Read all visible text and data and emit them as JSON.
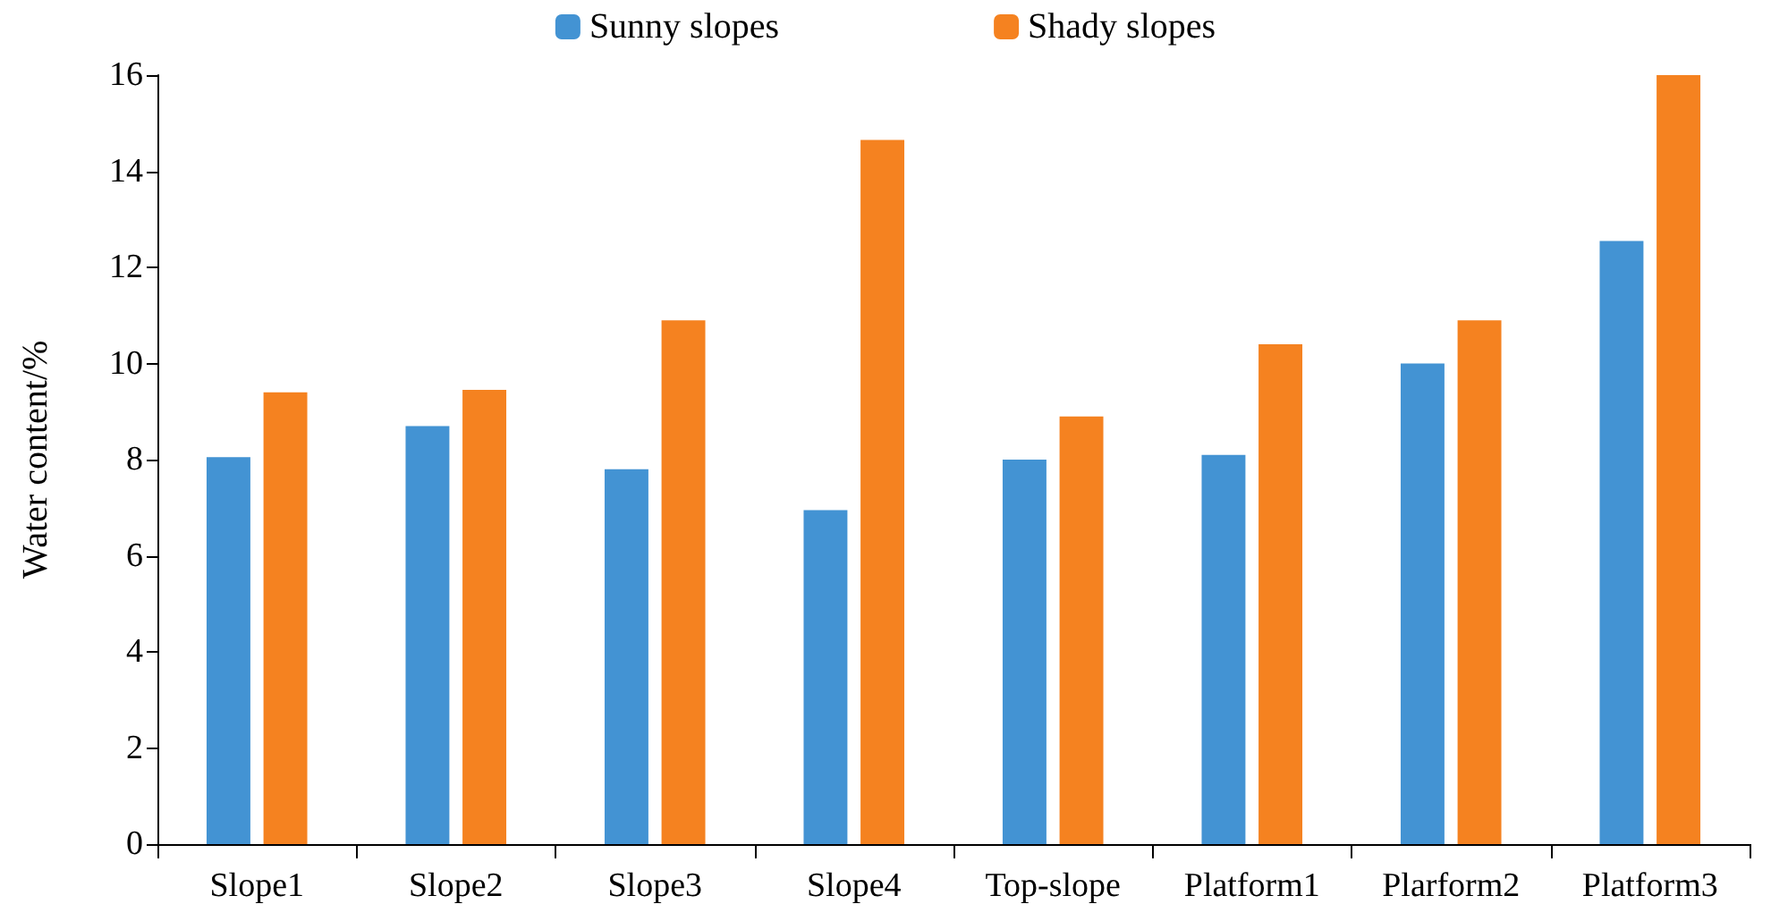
{
  "chart_data": {
    "type": "bar",
    "ylabel": "Water content/%",
    "categories": [
      "Slope1",
      "Slope2",
      "Slope3",
      "Slope4",
      "Top-slope",
      "Platform1",
      "Plarform2",
      "Platform3"
    ],
    "series": [
      {
        "name": "Sunny slopes",
        "color": "#4393d3",
        "values": [
          8.05,
          8.7,
          7.8,
          6.95,
          8.0,
          8.1,
          10.0,
          12.55
        ]
      },
      {
        "name": "Shady slopes",
        "color": "#f58220",
        "values": [
          9.4,
          9.45,
          10.9,
          14.65,
          8.9,
          10.4,
          10.9,
          16.0
        ]
      }
    ],
    "ylim": [
      0,
      16
    ],
    "yticks": [
      0,
      2,
      4,
      6,
      8,
      10,
      12,
      14,
      16
    ],
    "grid": false,
    "legend": "top"
  }
}
